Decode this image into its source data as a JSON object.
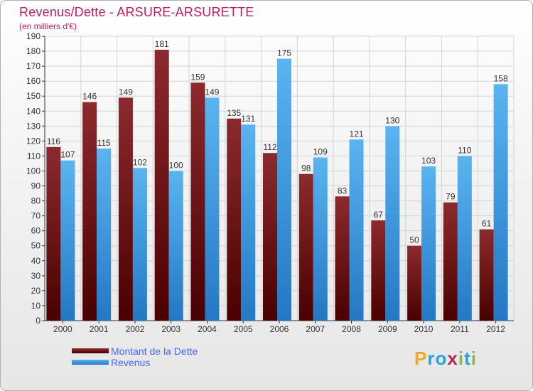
{
  "title": "Revenus/Dette - ARSURE-ARSURETTE",
  "subtitle": "(en milliers d'€)",
  "logo": {
    "letters": [
      "P",
      "r",
      "o",
      "x",
      "i",
      "t",
      "i"
    ],
    "colors": [
      "#f5a623",
      "#2ba3d8",
      "#2ba3d8",
      "#c0205a",
      "#7cc242",
      "#2ba3d8",
      "#7cc242"
    ]
  },
  "chart_data": {
    "type": "bar",
    "categories": [
      "2000",
      "2001",
      "2002",
      "2003",
      "2004",
      "2005",
      "2006",
      "2007",
      "2008",
      "2009",
      "2010",
      "2011",
      "2012"
    ],
    "series": [
      {
        "name": "Montant de la Dette",
        "color": "#7a1a1e",
        "values": [
          116,
          146,
          149,
          181,
          159,
          135,
          112,
          98,
          83,
          67,
          50,
          79,
          61
        ]
      },
      {
        "name": "Revenus",
        "color": "#3a9ee8",
        "values": [
          107,
          115,
          102,
          100,
          149,
          131,
          175,
          109,
          121,
          130,
          103,
          110,
          158
        ]
      }
    ],
    "ylim": [
      0,
      190
    ],
    "yticks": [
      0,
      10,
      20,
      30,
      40,
      50,
      60,
      70,
      80,
      90,
      100,
      110,
      120,
      130,
      140,
      150,
      160,
      170,
      180,
      190
    ],
    "grid": true,
    "legend_position": "bottom-left"
  }
}
